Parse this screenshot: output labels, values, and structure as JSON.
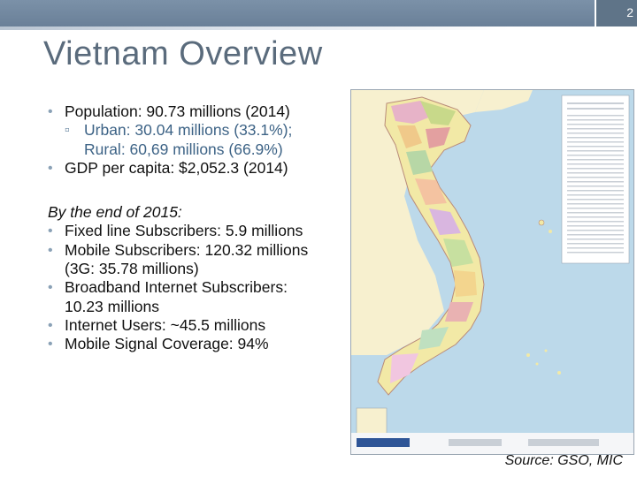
{
  "header": {
    "slide_number": "2",
    "bar_color": "#7b91a8"
  },
  "title": "Vietnam Overview",
  "bullets_top": {
    "population": "Population: 90.73 millions (2014)",
    "urban_line1": "Urban: 30.04 millions (33.1%);",
    "urban_line2": "Rural: 60,69 millions (66.9%)",
    "gdp": "GDP per capita: $2,052.3 (2014)"
  },
  "stats": {
    "heading": "By the end of 2015:",
    "fixed_line": "Fixed line Subscribers: 5.9 millions",
    "mobile_line1": "Mobile Subscribers: 120.32 millions",
    "mobile_line2": "(3G: 35.78 millions)",
    "broadband_line1": "Broadband Internet Subscribers:",
    "broadband_line2": "10.23 millions",
    "internet_users": "Internet Users: ~45.5 millions",
    "coverage": "Mobile Signal Coverage: 94%"
  },
  "map": {
    "description_icon": "vietnam-map-image",
    "sea_color": "#bcd9ea",
    "land_color": "#f2e9a6",
    "neighbor_color": "#f7f0cf"
  },
  "source": "Source: GSO, MIC"
}
